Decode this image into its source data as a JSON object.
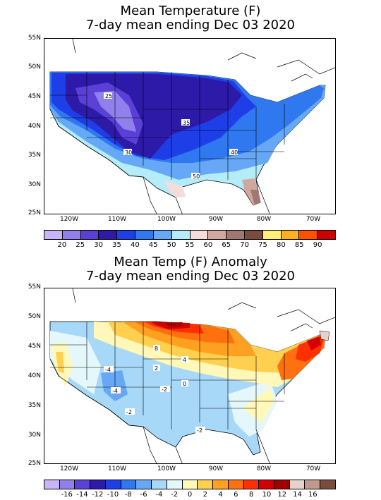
{
  "map1": {
    "title_line1": "Mean Temperature (F)",
    "title_line2": "7-day mean ending Dec 03 2020",
    "lat_labels": [
      "55N",
      "50N",
      "45N",
      "40N",
      "35N",
      "30N",
      "25N"
    ],
    "lon_labels": [
      "120W",
      "110W",
      "100W",
      "90W",
      "80W",
      "70W"
    ],
    "contour_labels": [
      "25",
      "35",
      "30",
      "40",
      "50"
    ],
    "legend_colors": [
      "#c8b4f8",
      "#9080ec",
      "#5b40d8",
      "#2e1aa8",
      "#1e3ee8",
      "#2f78f0",
      "#66a8f6",
      "#b4ecf8",
      "#f6dcd8",
      "#d0a8a0",
      "#a07870",
      "#7a4c3e",
      "#fff07a",
      "#ffb020",
      "#ff5000",
      "#cc0000"
    ],
    "legend_labels": [
      "20",
      "25",
      "30",
      "35",
      "40",
      "45",
      "50",
      "55",
      "60",
      "65",
      "70",
      "75",
      "80",
      "85",
      "90"
    ]
  },
  "map2": {
    "title_line1": "Mean Temp (F) Anomaly",
    "title_line2": "7-day mean ending Dec 03 2020",
    "lat_labels": [
      "55N",
      "50N",
      "45N",
      "40N",
      "35N",
      "30N",
      "25N"
    ],
    "lon_labels": [
      "120W",
      "110W",
      "100W",
      "90W",
      "80W",
      "70W"
    ],
    "contour_labels": [
      "8",
      "4",
      "2",
      "-4",
      "-2",
      "0",
      "-2",
      "-4",
      "-2"
    ],
    "legend_colors": [
      "#c8b4f8",
      "#9080ec",
      "#5b40d8",
      "#2e1aa8",
      "#1e3ee8",
      "#2f78f0",
      "#66a8f6",
      "#a8d8f8",
      "#e4f8fc",
      "#fff8b8",
      "#ffd050",
      "#ffa020",
      "#ff7010",
      "#ff3000",
      "#d40000",
      "#a00000",
      "#e8d0cc",
      "#c0988c",
      "#7a4c3e"
    ],
    "legend_labels": [
      "-16",
      "-14",
      "-12",
      "-10",
      "-8",
      "-6",
      "-4",
      "-2",
      "0",
      "2",
      "4",
      "6",
      "8",
      "10",
      "12",
      "14",
      "16"
    ]
  }
}
